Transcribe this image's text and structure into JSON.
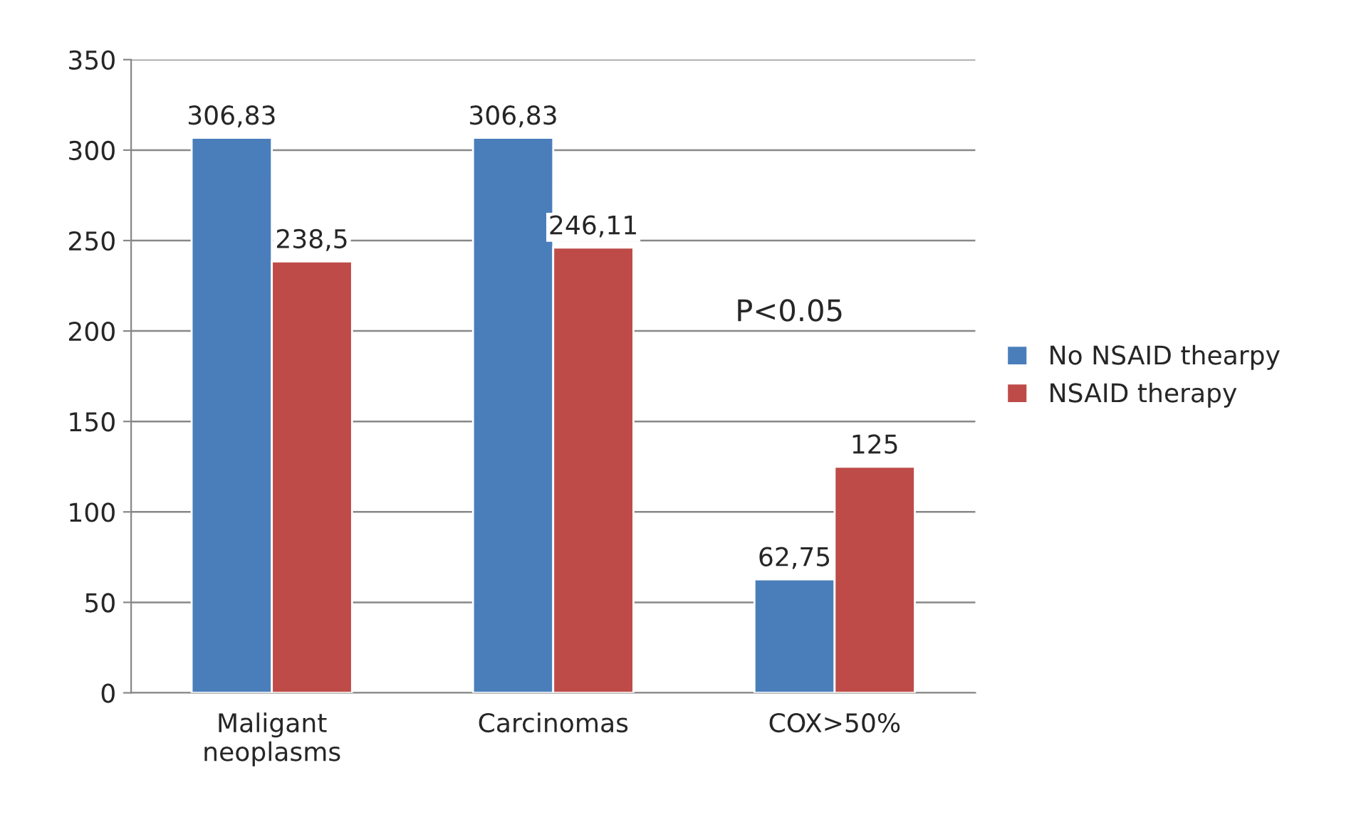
{
  "chart_data": {
    "type": "bar",
    "categories": [
      "Maligant\nneoplasms",
      "Carcinomas",
      "COX>50%"
    ],
    "series": [
      {
        "name": "No NSAID thearpy",
        "color": "#4a7ebb",
        "values": [
          306.83,
          306.83,
          62.75
        ],
        "value_labels": [
          "306,83",
          "306,83",
          "62,75"
        ]
      },
      {
        "name": "NSAID therapy",
        "color": "#be4b48",
        "values": [
          238.5,
          246.11,
          125
        ],
        "value_labels": [
          "238,5",
          "246,11",
          "125"
        ]
      }
    ],
    "ylim": [
      0,
      350
    ],
    "yticks": [
      0,
      50,
      100,
      150,
      200,
      250,
      300,
      350
    ],
    "grid": "y",
    "legend": "right",
    "annotations": [
      "P<0.05"
    ]
  }
}
